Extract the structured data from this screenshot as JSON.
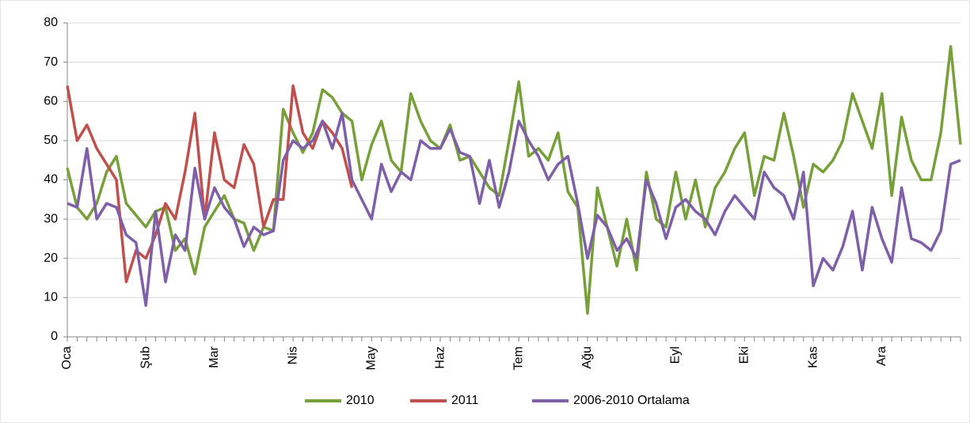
{
  "chart_data": {
    "type": "line",
    "categories": [
      "Oca",
      null,
      null,
      null,
      null,
      null,
      null,
      null,
      "Şub",
      null,
      null,
      null,
      null,
      null,
      null,
      "Mar",
      null,
      null,
      null,
      null,
      null,
      null,
      null,
      "Nis",
      null,
      null,
      null,
      null,
      null,
      null,
      null,
      "May",
      null,
      null,
      null,
      null,
      null,
      null,
      "Haz",
      null,
      null,
      null,
      null,
      null,
      null,
      null,
      "Tem",
      null,
      null,
      null,
      null,
      null,
      null,
      "Ağu",
      null,
      null,
      null,
      null,
      null,
      null,
      null,
      null,
      "Eyl",
      null,
      null,
      null,
      null,
      null,
      null,
      "Eki",
      null,
      null,
      null,
      null,
      null,
      null,
      "Kas",
      null,
      null,
      null,
      null,
      null,
      null,
      "Ara",
      null,
      null,
      null,
      null,
      null,
      null,
      null,
      null
    ],
    "series": [
      {
        "name": "2010",
        "color": "#77a03a",
        "values": [
          43,
          33,
          30,
          34,
          42,
          46,
          34,
          31,
          28,
          32,
          33,
          22,
          25,
          16,
          28,
          32,
          36,
          30,
          29,
          22,
          28,
          27,
          58,
          52,
          47,
          52,
          63,
          61,
          57,
          55,
          40,
          49,
          55,
          45,
          42,
          62,
          55,
          50,
          48,
          54,
          45,
          46,
          42,
          38,
          36,
          50,
          65,
          46,
          48,
          45,
          52,
          37,
          33,
          6,
          38,
          28,
          18,
          30,
          17,
          42,
          30,
          28,
          42,
          30,
          40,
          28,
          38,
          42,
          48,
          52,
          36,
          46,
          45,
          57,
          46,
          33,
          44,
          42,
          45,
          50,
          62,
          55,
          48,
          62,
          36,
          56,
          45,
          40,
          40,
          52,
          74,
          49
        ]
      },
      {
        "name": "2011",
        "color": "#c0504d",
        "values": [
          64,
          50,
          54,
          48,
          44,
          40,
          14,
          22,
          20,
          26,
          34,
          30,
          42,
          57,
          30,
          52,
          40,
          38,
          49,
          44,
          28,
          35,
          35,
          64,
          52,
          48,
          55,
          52,
          48,
          38,
          null,
          null,
          null,
          null,
          null,
          null,
          null,
          null,
          null,
          null,
          null,
          null,
          null,
          null,
          null,
          null,
          null,
          null,
          null,
          null,
          null,
          null,
          null,
          null,
          null,
          null,
          null,
          null,
          null,
          null,
          null,
          null,
          null,
          null,
          null,
          null,
          null,
          null,
          null,
          null,
          null,
          null,
          null,
          null,
          null,
          null,
          null,
          null,
          null,
          null,
          null,
          null,
          null,
          null,
          null,
          null,
          null,
          null,
          null,
          null,
          null,
          null
        ]
      },
      {
        "name": "2006-2010 Ortalama",
        "color": "#7f5fa8",
        "values": [
          34,
          33,
          48,
          30,
          34,
          33,
          26,
          24,
          8,
          32,
          14,
          26,
          22,
          43,
          30,
          38,
          33,
          30,
          23,
          28,
          26,
          27,
          45,
          50,
          48,
          50,
          55,
          48,
          57,
          40,
          35,
          30,
          44,
          37,
          42,
          40,
          50,
          48,
          48,
          53,
          47,
          46,
          34,
          45,
          33,
          42,
          55,
          50,
          46,
          40,
          44,
          46,
          34,
          20,
          31,
          28,
          22,
          25,
          20,
          40,
          34,
          25,
          33,
          35,
          32,
          30,
          26,
          32,
          36,
          33,
          30,
          42,
          38,
          36,
          30,
          42,
          13,
          20,
          17,
          23,
          32,
          17,
          33,
          25,
          19,
          38,
          25,
          24,
          22,
          27,
          44,
          45
        ]
      }
    ],
    "ylim": [
      0,
      80
    ],
    "yticks": [
      0,
      10,
      20,
      30,
      40,
      50,
      60,
      70,
      80
    ],
    "grid": true,
    "legend": "bottom"
  }
}
